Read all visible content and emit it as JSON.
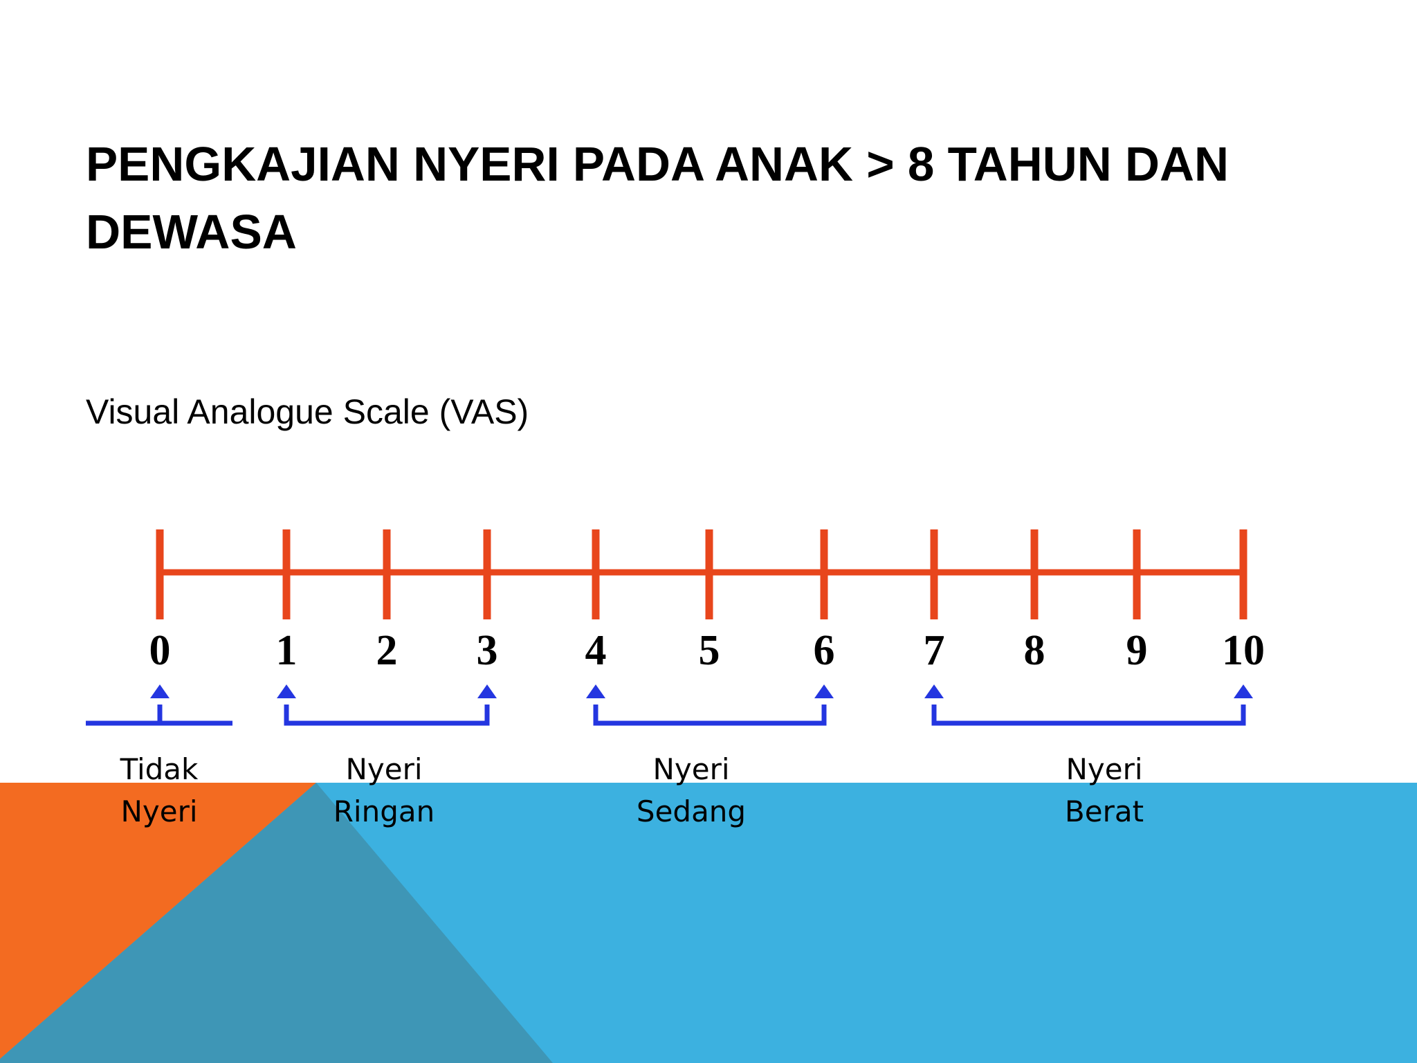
{
  "header": {
    "title_lines": [
      "PENGKAJIAN NYERI PADA ANAK > 8 TAHUN DAN",
      "DEWASA"
    ]
  },
  "subtitle": "Visual Analogue Scale (VAS)",
  "scale": {
    "ticks": [
      0,
      1,
      2,
      3,
      4,
      5,
      6,
      7,
      8,
      9,
      10
    ]
  },
  "groups": [
    {
      "lines": [
        "Tidak",
        "Nyeri"
      ]
    },
    {
      "lines": [
        "Nyeri",
        "Ringan"
      ]
    },
    {
      "lines": [
        "Nyeri",
        "Sedang"
      ]
    },
    {
      "lines": [
        "Nyeri",
        "Berat"
      ]
    }
  ]
}
